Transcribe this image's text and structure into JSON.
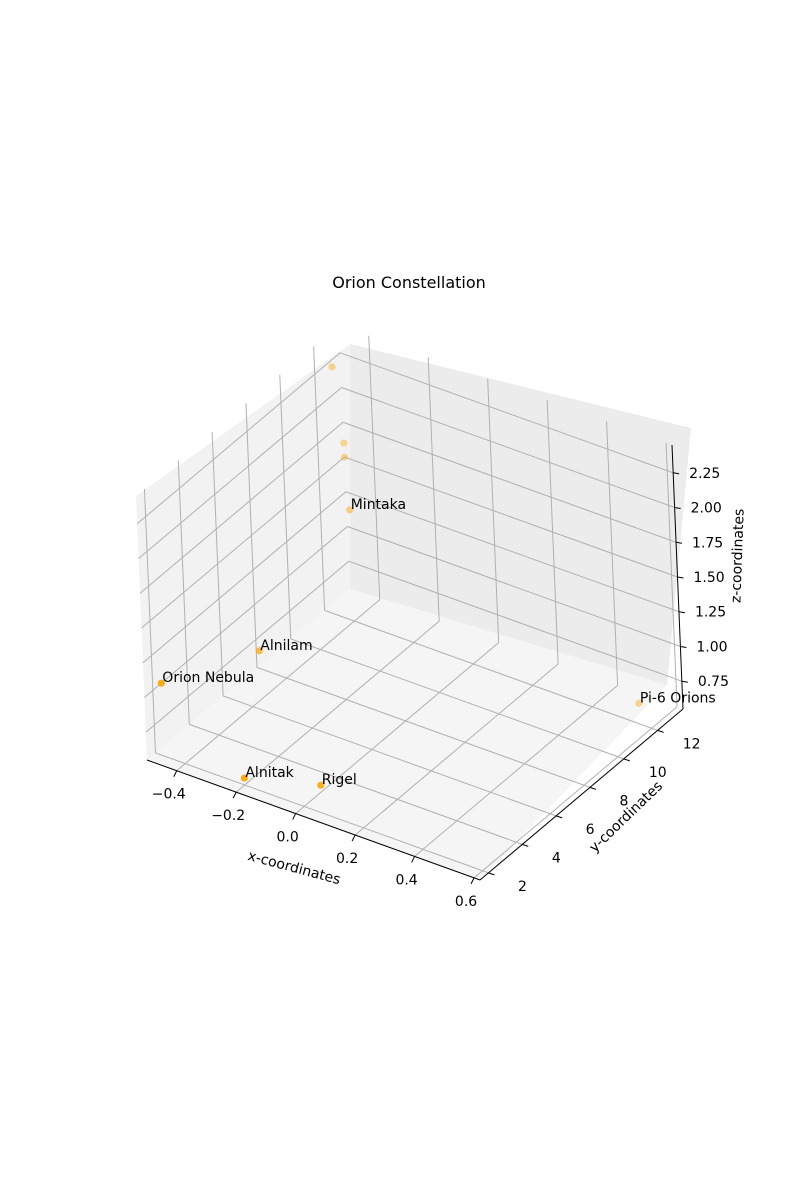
{
  "chart_data": {
    "type": "scatter",
    "title": "Orion Constellation",
    "xlabel": "x-coordinates",
    "ylabel": "y-coordinates",
    "zlabel": "z-coordinates",
    "xlim": [
      -0.5,
      0.62
    ],
    "ylim": [
      1.5,
      13.5
    ],
    "zlim": [
      0.55,
      2.45
    ],
    "xticks": [
      -0.4,
      -0.2,
      0.0,
      0.2,
      0.4,
      0.6
    ],
    "xtick_labels": [
      "−0.4",
      "−0.2",
      "0.0",
      "0.2",
      "0.4",
      "0.6"
    ],
    "yticks": [
      2,
      4,
      6,
      8,
      10,
      12
    ],
    "ytick_labels": [
      "2",
      "4",
      "6",
      "8",
      "10",
      "12"
    ],
    "zticks": [
      0.75,
      1.0,
      1.25,
      1.5,
      1.75,
      2.0,
      2.25
    ],
    "ztick_labels": [
      "0.75",
      "1.00",
      "1.25",
      "1.50",
      "1.75",
      "2.00",
      "2.25"
    ],
    "grid": true,
    "marker_color": "#ffa500",
    "points": [
      {
        "label": "Orion Nebula",
        "x": -0.5,
        "y": 2.5,
        "z": 1.0
      },
      {
        "label": "Alnilam",
        "x": -0.4,
        "y": 6.5,
        "z": 0.9
      },
      {
        "label": "Mintaka",
        "x": -0.4,
        "y": 12.0,
        "z": 1.35
      },
      {
        "label": "Alnitak",
        "x": -0.2,
        "y": 2.0,
        "z": 0.6
      },
      {
        "label": "Rigel",
        "x": 0.0,
        "y": 3.0,
        "z": 0.6
      },
      {
        "label": "Pi-6 Orions",
        "x": 0.5,
        "y": 13.0,
        "z": 0.55
      },
      {
        "label": "",
        "x": -0.5,
        "y": 13.0,
        "z": 2.2
      },
      {
        "label": "",
        "x": -0.5,
        "y": 13.5,
        "z": 1.6
      },
      {
        "label": "",
        "x": -0.5,
        "y": 13.5,
        "z": 1.5
      }
    ]
  }
}
